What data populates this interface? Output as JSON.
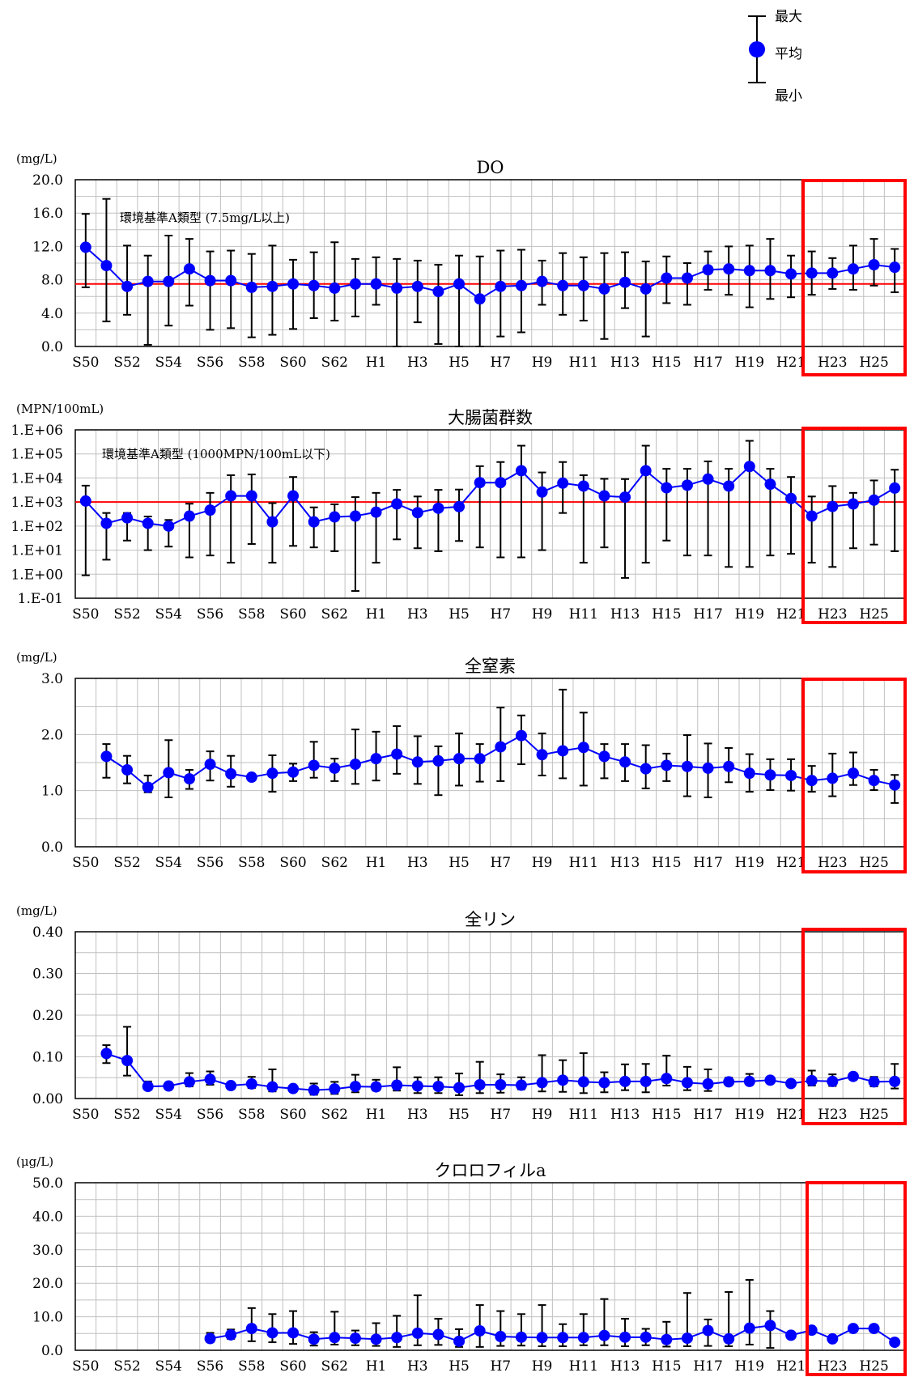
{
  "legend": {
    "max_label": "最大",
    "avg_label": "平均",
    "min_label": "最小"
  },
  "colors": {
    "series": "#0000ff",
    "errorbar": "#000000",
    "standard_line": "#ff0000",
    "highlight_box": "#ff0000",
    "grid": "#c0c0c0"
  },
  "x_axis_labels": [
    "S50",
    "S52",
    "S54",
    "S56",
    "S58",
    "S60",
    "S62",
    "H1",
    "H3",
    "H5",
    "H7",
    "H9",
    "H11",
    "H13",
    "H15",
    "H17",
    "H19",
    "H21",
    "H23",
    "H25"
  ],
  "chart_data": [
    {
      "type": "line",
      "title": "DO",
      "unit": "(mg/L)",
      "ylim": [
        0,
        20
      ],
      "ytick_labels": [
        "0.0",
        "4.0",
        "8.0",
        "12.0",
        "16.0",
        "20.0"
      ],
      "standard_label": "環境基準A類型 (7.5mg/L以上)",
      "standard_value": 7.5,
      "first_index": 0,
      "series": [
        {
          "avg": [
            11.9,
            9.7,
            7.2,
            7.8,
            7.8,
            9.3,
            7.9,
            7.9,
            7.1,
            7.2,
            7.5,
            7.3,
            7.0,
            7.5,
            7.5,
            7.0,
            7.2,
            6.6,
            7.5,
            5.7,
            7.2,
            7.3,
            7.8,
            7.3,
            7.3,
            6.9,
            7.7,
            6.9,
            8.2,
            8.2,
            9.2,
            9.3,
            9.1,
            9.1,
            8.7,
            8.8,
            8.8,
            9.3,
            9.8,
            9.5
          ],
          "max": [
            15.9,
            17.7,
            12.1,
            10.9,
            13.3,
            12.9,
            11.4,
            11.5,
            11.1,
            12.1,
            10.4,
            11.3,
            12.5,
            10.5,
            10.7,
            10.5,
            10.3,
            9.8,
            10.9,
            10.8,
            11.5,
            11.6,
            10.3,
            11.2,
            10.7,
            11.2,
            11.3,
            10.2,
            10.8,
            10.0,
            11.4,
            12.0,
            12.1,
            12.9,
            10.9,
            11.4,
            10.6,
            12.1,
            12.9,
            11.7
          ],
          "min": [
            7.1,
            3.0,
            3.8,
            0.2,
            2.5,
            4.9,
            2.0,
            2.2,
            1.1,
            1.4,
            2.1,
            3.4,
            3.1,
            3.6,
            5.0,
            0.0,
            2.9,
            0.3,
            0.0,
            0.0,
            1.2,
            1.7,
            5.0,
            3.8,
            3.1,
            0.9,
            4.6,
            1.2,
            5.2,
            5.0,
            6.8,
            6.2,
            4.7,
            5.7,
            5.9,
            6.2,
            6.9,
            6.8,
            7.3,
            6.5
          ]
        }
      ]
    },
    {
      "type": "line",
      "title": "大腸菌群数",
      "unit": "(MPN/100mL)",
      "log_scale": true,
      "ylim": [
        0.1,
        1000000
      ],
      "ytick_labels": [
        "1.E-01",
        "1.E+00",
        "1.E+01",
        "1.E+02",
        "1.E+03",
        "1.E+04",
        "1.E+05",
        "1.E+06"
      ],
      "standard_label": "環境基準A類型 (1000MPN/100mL以下)",
      "standard_value": 1000,
      "first_index": 0,
      "series": [
        {
          "avg": [
            1100,
            130,
            220,
            130,
            100,
            260,
            460,
            1800,
            1800,
            150,
            1800,
            150,
            240,
            260,
            380,
            830,
            360,
            550,
            640,
            6400,
            6400,
            20000,
            2600,
            6100,
            4600,
            1800,
            1600,
            20000,
            3900,
            5000,
            9000,
            4600,
            30000,
            5500,
            1400,
            260,
            650,
            830,
            1200,
            3800
          ],
          "max": [
            4800,
            350,
            350,
            250,
            180,
            850,
            2400,
            13000,
            14000,
            900,
            11000,
            600,
            800,
            1600,
            2400,
            3200,
            1700,
            3200,
            3300,
            31000,
            46000,
            220000,
            17000,
            46000,
            13000,
            9200,
            9000,
            220000,
            24000,
            24000,
            49000,
            24000,
            350000,
            24000,
            11000,
            1700,
            4600,
            2400,
            7900,
            22000
          ],
          "min": [
            0.9,
            4,
            25,
            10,
            14,
            5,
            6,
            3,
            18,
            3,
            15,
            13,
            9,
            0.2,
            3,
            28,
            12,
            9,
            24,
            13,
            5,
            5,
            10,
            350,
            3,
            13,
            0.7,
            3,
            25,
            6,
            6,
            2,
            2,
            6,
            7,
            3,
            2,
            12,
            17,
            9
          ]
        }
      ]
    },
    {
      "type": "line",
      "title": "全窒素",
      "unit": "(mg/L)",
      "ylim": [
        0,
        3
      ],
      "ytick_labels": [
        "0.0",
        "1.0",
        "2.0",
        "3.0"
      ],
      "first_index": 1,
      "series": [
        {
          "avg": [
            1.61,
            1.37,
            1.06,
            1.32,
            1.21,
            1.47,
            1.3,
            1.24,
            1.31,
            1.33,
            1.45,
            1.4,
            1.47,
            1.57,
            1.65,
            1.51,
            1.53,
            1.57,
            1.57,
            1.78,
            1.98,
            1.64,
            1.71,
            1.77,
            1.61,
            1.51,
            1.39,
            1.45,
            1.43,
            1.4,
            1.43,
            1.31,
            1.28,
            1.27,
            1.18,
            1.22,
            1.31,
            1.18,
            1.1
          ],
          "max": [
            1.83,
            1.62,
            1.27,
            1.9,
            1.37,
            1.7,
            1.62,
            1.25,
            1.63,
            1.48,
            1.87,
            1.57,
            2.09,
            2.05,
            2.15,
            1.97,
            1.79,
            2.02,
            1.83,
            2.48,
            2.34,
            2.02,
            2.8,
            2.39,
            1.83,
            1.83,
            1.81,
            1.66,
            1.99,
            1.84,
            1.76,
            1.65,
            1.56,
            1.56,
            1.44,
            1.66,
            1.68,
            1.37,
            1.28
          ],
          "min": [
            1.23,
            1.13,
            0.97,
            0.88,
            1.03,
            1.18,
            1.07,
            1.2,
            0.98,
            1.17,
            1.23,
            1.17,
            1.12,
            1.18,
            1.3,
            1.12,
            0.92,
            1.09,
            1.16,
            1.17,
            1.47,
            1.27,
            1.22,
            1.09,
            1.22,
            1.17,
            1.04,
            1.17,
            0.9,
            0.88,
            1.15,
            0.98,
            1.01,
            1.0,
            0.98,
            0.9,
            1.1,
            1.01,
            0.78
          ]
        }
      ]
    },
    {
      "type": "line",
      "title": "全リン",
      "unit": "(mg/L)",
      "ylim": [
        0,
        0.4
      ],
      "ytick_labels": [
        "0.00",
        "0.10",
        "0.20",
        "0.30",
        "0.40"
      ],
      "first_index": 1,
      "series": [
        {
          "avg": [
            0.108,
            0.091,
            0.029,
            0.03,
            0.04,
            0.046,
            0.031,
            0.035,
            0.028,
            0.024,
            0.02,
            0.023,
            0.029,
            0.028,
            0.032,
            0.03,
            0.029,
            0.026,
            0.033,
            0.033,
            0.032,
            0.038,
            0.044,
            0.04,
            0.038,
            0.041,
            0.041,
            0.048,
            0.038,
            0.035,
            0.04,
            0.041,
            0.044,
            0.036,
            0.043,
            0.041,
            0.053,
            0.04,
            0.041
          ],
          "max": [
            0.128,
            0.172,
            0.041,
            0.035,
            0.061,
            0.065,
            0.035,
            0.052,
            0.07,
            0.027,
            0.036,
            0.04,
            0.057,
            0.045,
            0.075,
            0.051,
            0.051,
            0.06,
            0.088,
            0.058,
            0.051,
            0.104,
            0.092,
            0.109,
            0.063,
            0.082,
            0.083,
            0.103,
            0.076,
            0.07,
            0.05,
            0.059,
            0.04,
            0.041,
            0.067,
            0.058,
            0.06,
            0.052,
            0.083
          ],
          "min": [
            0.085,
            0.055,
            0.024,
            0.025,
            0.029,
            0.033,
            0.027,
            0.025,
            0.017,
            0.021,
            0.009,
            0.011,
            0.015,
            0.019,
            0.019,
            0.013,
            0.013,
            0.008,
            0.013,
            0.014,
            0.022,
            0.017,
            0.016,
            0.013,
            0.015,
            0.02,
            0.015,
            0.031,
            0.02,
            0.018,
            0.033,
            0.033,
            0.038,
            0.032,
            0.031,
            0.03,
            0.045,
            0.029,
            0.024
          ]
        }
      ]
    },
    {
      "type": "line",
      "title": "クロロフィルa",
      "unit": "(μg/L)",
      "ylim": [
        0,
        50
      ],
      "ytick_labels": [
        "0.0",
        "10.0",
        "20.0",
        "30.0",
        "40.0",
        "50.0"
      ],
      "first_index": 6,
      "series": [
        {
          "avg": [
            3.5,
            4.6,
            6.5,
            5.2,
            5.2,
            3.3,
            3.8,
            3.6,
            3.3,
            3.8,
            5.1,
            4.7,
            2.7,
            5.8,
            4.1,
            3.9,
            3.8,
            3.8,
            3.8,
            4.4,
            3.9,
            3.9,
            3.2,
            3.6,
            5.9,
            3.4,
            6.6,
            7.4,
            4.5,
            6.0,
            3.4,
            6.5,
            6.5,
            2.4
          ],
          "max": [
            5.2,
            6.2,
            12.6,
            10.8,
            11.7,
            5.4,
            11.5,
            5.9,
            8.1,
            10.3,
            16.4,
            9.4,
            6.3,
            13.5,
            11.7,
            10.8,
            13.5,
            7.8,
            10.8,
            15.3,
            9.4,
            6.4,
            8.5,
            17.1,
            9.2,
            17.4,
            21.0,
            11.7,
            null,
            null,
            null,
            null,
            null,
            null
          ],
          "min": [
            2.4,
            3.4,
            2.7,
            2.4,
            1.9,
            1.4,
            1.7,
            1.5,
            1.3,
            1.0,
            1.5,
            1.6,
            1.0,
            1.0,
            1.3,
            1.4,
            1.2,
            1.2,
            1.5,
            1.5,
            1.2,
            1.5,
            1.1,
            1.2,
            1.3,
            1.2,
            1.7,
            0.7,
            null,
            null,
            null,
            null,
            null,
            null
          ]
        }
      ]
    }
  ]
}
